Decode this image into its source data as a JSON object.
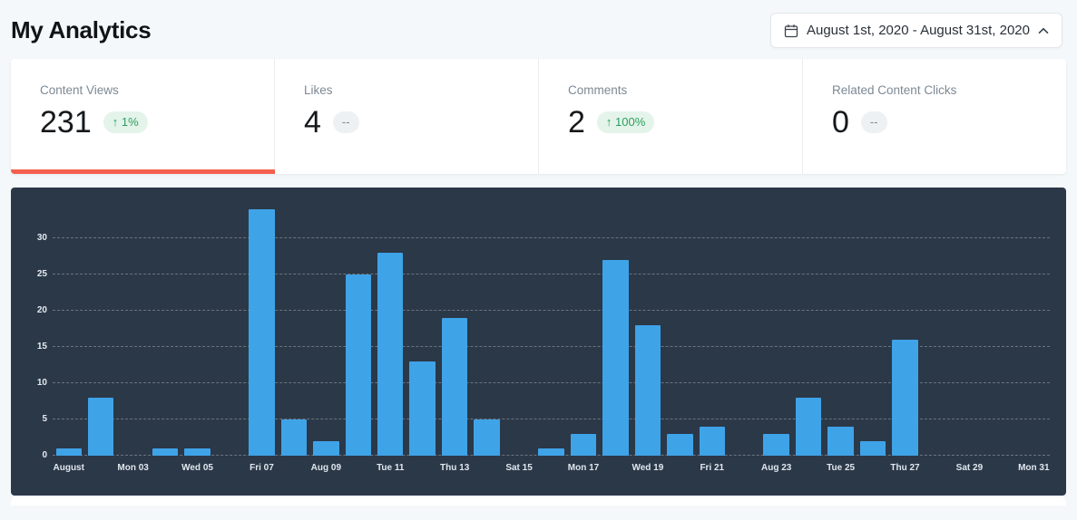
{
  "page": {
    "title": "My Analytics",
    "background": "#f4f8fa"
  },
  "date_picker": {
    "label": "August 1st, 2020 - August 31st, 2020"
  },
  "stats": {
    "active_tile": "Content Views",
    "active_color": "#f4604e",
    "tiles": [
      {
        "label": "Content Views",
        "value": "231",
        "badge": "↑ 1%",
        "badge_type": "positive"
      },
      {
        "label": "Likes",
        "value": "4",
        "badge": "--",
        "badge_type": "neutral"
      },
      {
        "label": "Comments",
        "value": "2",
        "badge": "↑ 100%",
        "badge_type": "positive"
      },
      {
        "label": "Related Content Clicks",
        "value": "0",
        "badge": "--",
        "badge_type": "neutral"
      }
    ]
  },
  "chart_data": {
    "type": "bar",
    "title": "",
    "x": [
      "Aug 01",
      "Aug 02",
      "Aug 03",
      "Aug 04",
      "Aug 05",
      "Aug 06",
      "Aug 07",
      "Aug 08",
      "Aug 09",
      "Aug 10",
      "Aug 11",
      "Aug 12",
      "Aug 13",
      "Aug 14",
      "Aug 15",
      "Aug 16",
      "Aug 17",
      "Aug 18",
      "Aug 19",
      "Aug 20",
      "Aug 21",
      "Aug 22",
      "Aug 23",
      "Aug 24",
      "Aug 25",
      "Aug 26",
      "Aug 27",
      "Aug 28",
      "Aug 29",
      "Aug 30",
      "Aug 31"
    ],
    "values": [
      1,
      8,
      0,
      1,
      1,
      0,
      34,
      5,
      2,
      25,
      28,
      13,
      19,
      5,
      0,
      1,
      3,
      27,
      18,
      3,
      4,
      0,
      3,
      8,
      4,
      2,
      16,
      0,
      0,
      0,
      0
    ],
    "x_tick_labels": [
      "August",
      "",
      "Mon 03",
      "",
      "Wed 05",
      "",
      "Fri 07",
      "",
      "Aug 09",
      "",
      "Tue 11",
      "",
      "Thu 13",
      "",
      "Sat 15",
      "",
      "Mon 17",
      "",
      "Wed 19",
      "",
      "Fri 21",
      "",
      "Aug 23",
      "",
      "Tue 25",
      "",
      "Thu 27",
      "",
      "Sat 29",
      "",
      "Mon 31"
    ],
    "yticks": [
      0,
      5,
      10,
      15,
      20,
      25,
      30
    ],
    "ylim": [
      0,
      37
    ],
    "xlabel": "",
    "ylabel": "",
    "grid": "dashed-horizontal",
    "legend": "none",
    "bar_color": "#3fa3e8",
    "panel_bg": "#2b3848"
  }
}
